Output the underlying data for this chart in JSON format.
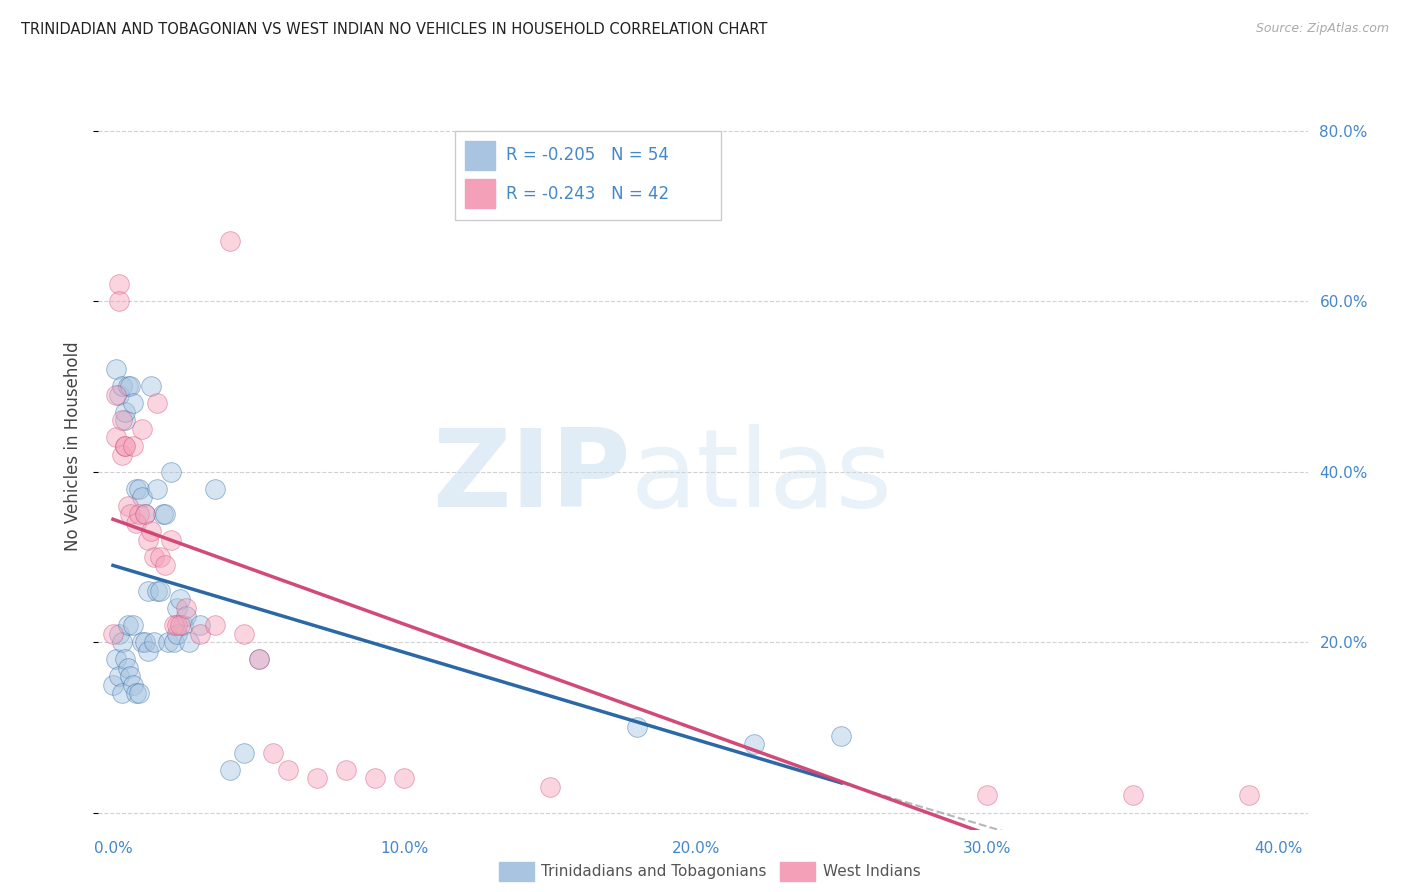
{
  "title": "TRINIDADIAN AND TOBAGONIAN VS WEST INDIAN NO VEHICLES IN HOUSEHOLD CORRELATION CHART",
  "source": "Source: ZipAtlas.com",
  "ylabel": "No Vehicles in Household",
  "watermark_zip": "ZIP",
  "watermark_atlas": "atlas",
  "series": [
    {
      "name": "Trinidadians and Tobagonians",
      "color": "#a8c4e0",
      "line_color": "#2060a0",
      "R": -0.205,
      "N": 54,
      "x": [
        0.0,
        0.001,
        0.001,
        0.002,
        0.002,
        0.002,
        0.003,
        0.003,
        0.003,
        0.004,
        0.004,
        0.004,
        0.005,
        0.005,
        0.005,
        0.006,
        0.006,
        0.007,
        0.007,
        0.007,
        0.008,
        0.008,
        0.009,
        0.009,
        0.01,
        0.01,
        0.011,
        0.011,
        0.012,
        0.012,
        0.013,
        0.014,
        0.015,
        0.015,
        0.016,
        0.017,
        0.018,
        0.019,
        0.02,
        0.021,
        0.022,
        0.022,
        0.023,
        0.024,
        0.025,
        0.026,
        0.03,
        0.035,
        0.04,
        0.045,
        0.05,
        0.18,
        0.22,
        0.25
      ],
      "y": [
        0.15,
        0.52,
        0.18,
        0.16,
        0.21,
        0.49,
        0.14,
        0.5,
        0.2,
        0.46,
        0.47,
        0.18,
        0.17,
        0.5,
        0.22,
        0.5,
        0.16,
        0.48,
        0.15,
        0.22,
        0.14,
        0.38,
        0.14,
        0.38,
        0.2,
        0.37,
        0.2,
        0.35,
        0.19,
        0.26,
        0.5,
        0.2,
        0.26,
        0.38,
        0.26,
        0.35,
        0.35,
        0.2,
        0.4,
        0.2,
        0.21,
        0.24,
        0.25,
        0.22,
        0.23,
        0.2,
        0.22,
        0.38,
        0.05,
        0.07,
        0.18,
        0.1,
        0.08,
        0.09
      ]
    },
    {
      "name": "West Indians",
      "color": "#f4a0b8",
      "line_color": "#d04070",
      "R": -0.243,
      "N": 42,
      "x": [
        0.0,
        0.001,
        0.001,
        0.002,
        0.002,
        0.003,
        0.003,
        0.004,
        0.004,
        0.005,
        0.006,
        0.007,
        0.008,
        0.009,
        0.01,
        0.011,
        0.012,
        0.013,
        0.014,
        0.015,
        0.016,
        0.018,
        0.02,
        0.021,
        0.022,
        0.023,
        0.025,
        0.03,
        0.035,
        0.04,
        0.045,
        0.05,
        0.055,
        0.06,
        0.07,
        0.08,
        0.09,
        0.1,
        0.15,
        0.3,
        0.35,
        0.39
      ],
      "y": [
        0.21,
        0.49,
        0.44,
        0.62,
        0.6,
        0.46,
        0.42,
        0.43,
        0.43,
        0.36,
        0.35,
        0.43,
        0.34,
        0.35,
        0.45,
        0.35,
        0.32,
        0.33,
        0.3,
        0.48,
        0.3,
        0.29,
        0.32,
        0.22,
        0.22,
        0.22,
        0.24,
        0.21,
        0.22,
        0.67,
        0.21,
        0.18,
        0.07,
        0.05,
        0.04,
        0.05,
        0.04,
        0.04,
        0.03,
        0.02,
        0.02,
        0.02
      ]
    }
  ],
  "xlim": [
    -0.005,
    0.41
  ],
  "ylim": [
    -0.02,
    0.88
  ],
  "xticks": [
    0.0,
    0.1,
    0.2,
    0.3,
    0.4
  ],
  "xtick_labels": [
    "0.0%",
    "10.0%",
    "20.0%",
    "30.0%",
    "40.0%"
  ],
  "yticks": [
    0.0,
    0.2,
    0.4,
    0.6,
    0.8
  ],
  "ytick_labels_right": [
    "",
    "20.0%",
    "40.0%",
    "60.0%",
    "80.0%"
  ],
  "grid_color": "#cccccc",
  "background_color": "#ffffff",
  "title_color": "#222222",
  "axis_color": "#4488cc",
  "marker_size": 200,
  "marker_alpha": 0.45,
  "line_width": 2.5
}
